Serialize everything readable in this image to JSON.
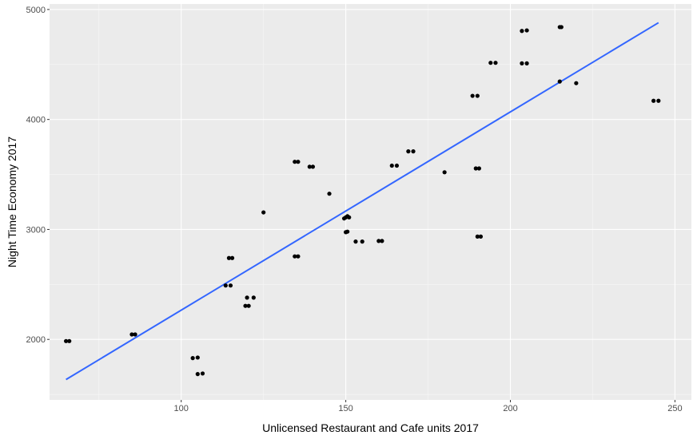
{
  "chart_data": {
    "type": "scatter",
    "xlabel": "Unlicensed Restaurant and Cafe units 2017",
    "ylabel": "Night Time Economy 2017",
    "xlim": [
      60,
      255
    ],
    "ylim": [
      1450,
      5050
    ],
    "x_ticks": [
      100,
      150,
      200,
      250
    ],
    "y_ticks": [
      2000,
      3000,
      4000,
      5000
    ],
    "x_tick_labels": [
      "100",
      "150",
      "200",
      "250"
    ],
    "y_tick_labels": [
      "2000",
      "3000",
      "4000",
      "5000"
    ],
    "grid": true,
    "legend": "none",
    "colors": {
      "panel": "#ebebeb",
      "grid_major": "#ffffff",
      "points": "#000000",
      "trend_line": "#3366ff"
    },
    "series": [
      {
        "points": [
          {
            "x": 65,
            "y": 1985
          },
          {
            "x": 66,
            "y": 1985
          },
          {
            "x": 85,
            "y": 2045
          },
          {
            "x": 86,
            "y": 2045
          },
          {
            "x": 103.5,
            "y": 1830
          },
          {
            "x": 105,
            "y": 1835
          },
          {
            "x": 105,
            "y": 1685
          },
          {
            "x": 106.5,
            "y": 1690
          },
          {
            "x": 113.5,
            "y": 2490
          },
          {
            "x": 115,
            "y": 2490
          },
          {
            "x": 114.5,
            "y": 2740
          },
          {
            "x": 115.5,
            "y": 2740
          },
          {
            "x": 119.5,
            "y": 2305
          },
          {
            "x": 120.5,
            "y": 2305
          },
          {
            "x": 120,
            "y": 2380
          },
          {
            "x": 122,
            "y": 2380
          },
          {
            "x": 125,
            "y": 3155
          },
          {
            "x": 134.5,
            "y": 2755
          },
          {
            "x": 135.5,
            "y": 2755
          },
          {
            "x": 134.5,
            "y": 3615
          },
          {
            "x": 135.5,
            "y": 3615
          },
          {
            "x": 139,
            "y": 3570
          },
          {
            "x": 140,
            "y": 3570
          },
          {
            "x": 145,
            "y": 3325
          },
          {
            "x": 149.5,
            "y": 3100
          },
          {
            "x": 150,
            "y": 3110
          },
          {
            "x": 150.5,
            "y": 3120
          },
          {
            "x": 151,
            "y": 3110
          },
          {
            "x": 150,
            "y": 2975
          },
          {
            "x": 150.5,
            "y": 2980
          },
          {
            "x": 153,
            "y": 2890
          },
          {
            "x": 155,
            "y": 2890
          },
          {
            "x": 160,
            "y": 2895
          },
          {
            "x": 161,
            "y": 2895
          },
          {
            "x": 164,
            "y": 3580
          },
          {
            "x": 165.5,
            "y": 3580
          },
          {
            "x": 169,
            "y": 3710
          },
          {
            "x": 170.5,
            "y": 3710
          },
          {
            "x": 180,
            "y": 3520
          },
          {
            "x": 188.5,
            "y": 4215
          },
          {
            "x": 190,
            "y": 4215
          },
          {
            "x": 189.5,
            "y": 3555
          },
          {
            "x": 190.5,
            "y": 3555
          },
          {
            "x": 190,
            "y": 2935
          },
          {
            "x": 191,
            "y": 2935
          },
          {
            "x": 194,
            "y": 4515
          },
          {
            "x": 195.5,
            "y": 4515
          },
          {
            "x": 203.5,
            "y": 4510
          },
          {
            "x": 205,
            "y": 4510
          },
          {
            "x": 203.5,
            "y": 4805
          },
          {
            "x": 205,
            "y": 4810
          },
          {
            "x": 215,
            "y": 4840
          },
          {
            "x": 215.5,
            "y": 4840
          },
          {
            "x": 215,
            "y": 4345
          },
          {
            "x": 220,
            "y": 4330
          },
          {
            "x": 243.5,
            "y": 4170
          },
          {
            "x": 245,
            "y": 4170
          }
        ]
      }
    ],
    "trend_line": {
      "x": [
        65,
        245
      ],
      "y": [
        1635,
        4880
      ]
    }
  }
}
